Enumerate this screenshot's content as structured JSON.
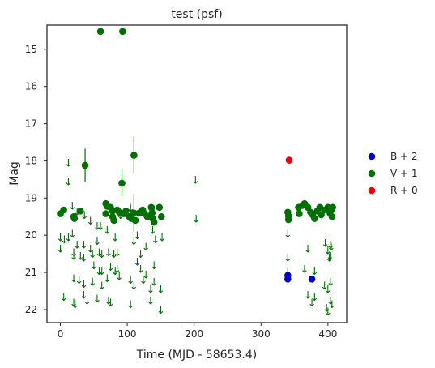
{
  "chart_data": {
    "type": "scatter",
    "title": "test (psf)",
    "xlabel": "Time (MJD - 58653.4)",
    "ylabel": "Mag",
    "xlim": [
      -20,
      428
    ],
    "ylim": [
      22.35,
      14.35
    ],
    "y_inverted": true,
    "xticks": [
      0,
      100,
      200,
      300,
      400
    ],
    "yticks": [
      15,
      16,
      17,
      18,
      19,
      20,
      21,
      22
    ],
    "grid": false,
    "legend_placement": "right-outside",
    "legend": [
      {
        "label": "B + 2",
        "color": "#0000cc"
      },
      {
        "label": "V + 1",
        "color": "#007000"
      },
      {
        "label": "R + 0",
        "color": "#ee0000"
      }
    ],
    "upper_limit_symbol": "↓",
    "series": [
      {
        "name": "B + 2",
        "color": "#0000cc",
        "points": [
          [
            340,
            21.08
          ],
          [
            340,
            21.18
          ],
          [
            376,
            21.18
          ]
        ],
        "upper_limits": []
      },
      {
        "name": "V + 1",
        "color": "#007000",
        "points": [
          [
            60,
            14.52,
            0
          ],
          [
            93,
            14.52,
            0
          ],
          [
            37,
            18.12,
            0.45
          ],
          [
            92,
            18.6,
            0.35
          ],
          [
            110,
            17.85,
            0.5
          ],
          [
            0,
            19.42,
            0
          ],
          [
            5,
            19.32,
            0
          ],
          [
            20,
            19.5,
            0
          ],
          [
            21,
            19.55,
            0
          ],
          [
            30,
            19.35,
            0
          ],
          [
            68,
            19.15,
            0
          ],
          [
            70,
            19.22,
            0
          ],
          [
            68,
            19.42,
            0
          ],
          [
            75,
            19.25,
            0
          ],
          [
            78,
            19.35,
            0
          ],
          [
            78,
            19.5,
            0
          ],
          [
            80,
            19.6,
            0
          ],
          [
            85,
            19.32,
            0
          ],
          [
            88,
            19.38,
            0
          ],
          [
            95,
            19.42,
            0
          ],
          [
            98,
            19.35,
            0
          ],
          [
            103,
            19.5,
            0
          ],
          [
            106,
            19.55,
            0
          ],
          [
            110,
            19.4,
            0.5
          ],
          [
            112,
            19.6,
            0
          ],
          [
            118,
            19.4,
            0
          ],
          [
            123,
            19.32,
            0
          ],
          [
            126,
            19.42,
            0
          ],
          [
            130,
            19.5,
            0
          ],
          [
            136,
            19.25,
            0
          ],
          [
            137,
            19.4,
            0
          ],
          [
            138,
            19.55,
            0
          ],
          [
            140,
            19.65,
            0
          ],
          [
            148,
            19.25,
            0
          ],
          [
            151,
            19.5,
            0
          ],
          [
            340,
            19.38,
            0
          ],
          [
            341,
            19.48,
            0
          ],
          [
            341,
            19.58,
            0
          ],
          [
            356,
            19.25,
            0
          ],
          [
            357,
            19.42,
            0
          ],
          [
            362,
            19.2,
            0
          ],
          [
            365,
            19.15,
            0
          ],
          [
            370,
            19.25,
            0
          ],
          [
            374,
            19.38,
            0
          ],
          [
            377,
            19.45,
            0
          ],
          [
            380,
            19.55,
            0
          ],
          [
            384,
            19.35,
            0
          ],
          [
            388,
            19.25,
            0
          ],
          [
            390,
            19.45,
            0
          ],
          [
            395,
            19.32,
            0
          ],
          [
            400,
            19.25,
            0
          ],
          [
            403,
            19.4,
            0
          ],
          [
            405,
            19.32,
            0
          ],
          [
            406,
            19.5,
            0
          ],
          [
            407,
            19.25,
            0
          ]
        ],
        "upper_limits": [
          [
            12,
            18.05
          ],
          [
            12,
            18.55
          ],
          [
            18,
            19.2
          ],
          [
            25,
            19.35
          ],
          [
            36,
            19.45
          ],
          [
            45,
            19.6
          ],
          [
            55,
            19.75
          ],
          [
            60,
            19.75
          ],
          [
            70,
            19.85
          ],
          [
            90,
            19.45
          ],
          [
            105,
            19.25
          ],
          [
            140,
            19.35
          ],
          [
            202,
            18.5
          ],
          [
            203,
            19.55
          ],
          [
            0,
            20.05
          ],
          [
            0,
            20.35
          ],
          [
            6,
            20.1
          ],
          [
            12,
            20.05
          ],
          [
            18,
            19.95
          ],
          [
            25,
            20.25
          ],
          [
            20,
            20.45
          ],
          [
            20,
            20.55
          ],
          [
            30,
            20.55
          ],
          [
            35,
            20.25
          ],
          [
            35,
            20.6
          ],
          [
            45,
            20.35
          ],
          [
            48,
            20.5
          ],
          [
            55,
            20.15
          ],
          [
            58,
            20.45
          ],
          [
            62,
            20.5
          ],
          [
            72,
            20.45
          ],
          [
            80,
            20.5
          ],
          [
            82,
            20.05
          ],
          [
            85,
            20.45
          ],
          [
            110,
            20.15
          ],
          [
            115,
            20.0
          ],
          [
            120,
            20.5
          ],
          [
            128,
            20.3
          ],
          [
            138,
            19.85
          ],
          [
            142,
            20.1
          ],
          [
            152,
            20.05
          ],
          [
            115,
            20.7
          ],
          [
            120,
            20.9
          ],
          [
            128,
            21.05
          ],
          [
            140,
            20.8
          ],
          [
            50,
            20.8
          ],
          [
            58,
            20.95
          ],
          [
            62,
            20.95
          ],
          [
            75,
            20.85
          ],
          [
            82,
            20.95
          ],
          [
            85,
            20.9
          ],
          [
            20,
            21.15
          ],
          [
            28,
            21.2
          ],
          [
            35,
            21.3
          ],
          [
            48,
            21.25
          ],
          [
            62,
            21.35
          ],
          [
            70,
            21.15
          ],
          [
            88,
            21.1
          ],
          [
            105,
            21.2
          ],
          [
            110,
            21.35
          ],
          [
            124,
            21.2
          ],
          [
            135,
            21.45
          ],
          [
            140,
            21.25
          ],
          [
            150,
            21.45
          ],
          [
            5,
            21.65
          ],
          [
            20,
            21.8
          ],
          [
            22,
            21.85
          ],
          [
            35,
            21.6
          ],
          [
            40,
            21.75
          ],
          [
            55,
            21.7
          ],
          [
            72,
            21.75
          ],
          [
            75,
            21.8
          ],
          [
            105,
            21.85
          ],
          [
            135,
            21.75
          ],
          [
            150,
            22.0
          ],
          [
            340,
            19.95
          ],
          [
            340,
            20.6
          ],
          [
            340,
            20.95
          ],
          [
            370,
            20.35
          ],
          [
            365,
            20.9
          ],
          [
            380,
            20.95
          ],
          [
            396,
            20.2
          ],
          [
            400,
            20.4
          ],
          [
            402,
            20.6
          ],
          [
            403,
            20.55
          ],
          [
            404,
            20.25
          ],
          [
            405,
            20.3
          ],
          [
            370,
            21.6
          ],
          [
            376,
            21.8
          ],
          [
            380,
            21.65
          ],
          [
            395,
            21.35
          ],
          [
            400,
            21.45
          ],
          [
            404,
            21.25
          ],
          [
            398,
            21.95
          ],
          [
            400,
            22.05
          ],
          [
            404,
            21.75
          ],
          [
            406,
            21.85
          ]
        ]
      },
      {
        "name": "R + 0",
        "color": "#ee0000",
        "points": [
          [
            342,
            17.98
          ]
        ],
        "upper_limits": []
      }
    ]
  }
}
